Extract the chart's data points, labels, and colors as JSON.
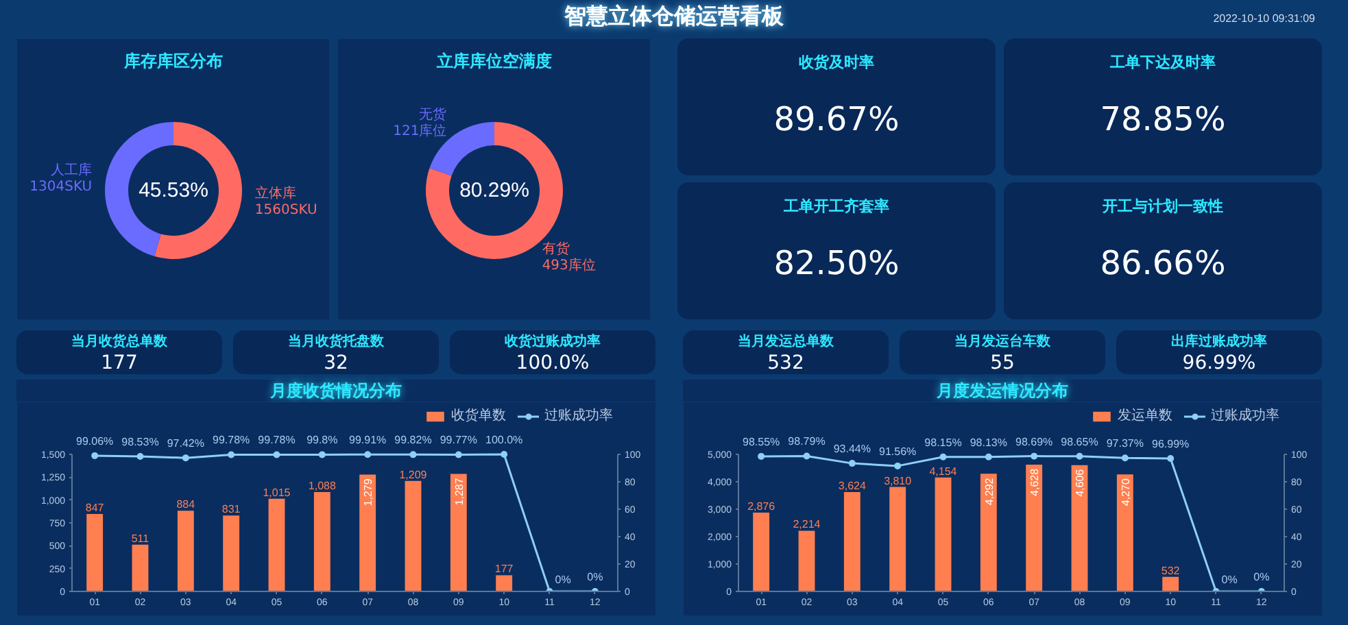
{
  "chart_data": [
    {
      "type": "other",
      "title": "智慧立体仓储运营看板",
      "annotations": [
        "2022-10-10 09:31:09"
      ]
    },
    {
      "type": "donut",
      "title": "库存库区分布",
      "categories": [
        "立体库",
        "人工库"
      ],
      "values": [
        1560,
        1304
      ],
      "colors": [
        "#ff6b63",
        "#6a6cff"
      ],
      "value_labels": [
        "1560SKU",
        "1304SKU"
      ],
      "annotations": [
        "45.53%"
      ]
    },
    {
      "type": "donut",
      "title": "立库库位空满度",
      "categories": [
        "有货",
        "无货"
      ],
      "values": [
        493,
        121
      ],
      "colors": [
        "#ff6b63",
        "#6a6cff"
      ],
      "value_labels": [
        "493库位",
        "121库位"
      ],
      "annotations": [
        "80.29%"
      ]
    },
    {
      "type": "other",
      "title": "收货及时率",
      "annotations": [
        "89.67%"
      ]
    },
    {
      "type": "other",
      "title": "工单下达及时率",
      "annotations": [
        "78.85%"
      ]
    },
    {
      "type": "other",
      "title": "工单开工齐套率",
      "annotations": [
        "82.50%"
      ]
    },
    {
      "type": "other",
      "title": "开工与计划一致性",
      "annotations": [
        "86.66%"
      ]
    },
    {
      "type": "other",
      "title": "当月收货总单数",
      "annotations": [
        "177"
      ]
    },
    {
      "type": "other",
      "title": "当月收货托盘数",
      "annotations": [
        "32"
      ]
    },
    {
      "type": "other",
      "title": "收货过账成功率",
      "annotations": [
        "100.0%"
      ]
    },
    {
      "type": "bar",
      "title": "月度收货情况分布",
      "categories": [
        "01",
        "02",
        "03",
        "04",
        "05",
        "06",
        "07",
        "08",
        "09",
        "10",
        "11",
        "12"
      ],
      "series": [
        {
          "name": "收货单数",
          "type": "bar",
          "color": "#ff7f50",
          "values": [
            847,
            511,
            884,
            831,
            1015,
            1088,
            1279,
            1209,
            1287,
            177,
            null,
            null
          ],
          "value_labels": [
            "847",
            "511",
            "884",
            "831",
            "1,015",
            "1,088",
            "1,279",
            "1,209",
            "1,287",
            "177",
            null,
            null
          ]
        },
        {
          "name": "过账成功率",
          "type": "line",
          "axis": "y2",
          "color": "#8fd0f5",
          "marker": "circle",
          "values": [
            99.06,
            98.53,
            97.42,
            99.78,
            99.78,
            99.8,
            99.91,
            99.82,
            99.77,
            100.0,
            0,
            0
          ],
          "value_labels": [
            "99.06%",
            "98.53%",
            "97.42%",
            "99.78%",
            "99.78%",
            "99.8%",
            "99.91%",
            "99.82%",
            "99.77%",
            "100.0%",
            "0%",
            "0%"
          ]
        }
      ],
      "ylim": [
        0,
        1500
      ],
      "yticks": [
        0,
        250,
        500,
        750,
        {
          "value": 1000,
          "label": "1,000"
        },
        {
          "value": 1250,
          "label": "1,250"
        },
        {
          "value": 1500,
          "label": "1,500"
        }
      ],
      "y2lim": [
        0,
        100
      ],
      "y2ticks": [
        0,
        20,
        40,
        60,
        80,
        100
      ],
      "legend": "top right",
      "grid": false
    },
    {
      "type": "other",
      "title": "当月发运总单数",
      "annotations": [
        "532"
      ]
    },
    {
      "type": "other",
      "title": "当月发运台车数",
      "annotations": [
        "55"
      ]
    },
    {
      "type": "other",
      "title": "出库过账成功率",
      "annotations": [
        "96.99%"
      ]
    },
    {
      "type": "bar",
      "title": "月度发运情况分布",
      "categories": [
        "01",
        "02",
        "03",
        "04",
        "05",
        "06",
        "07",
        "08",
        "09",
        "10",
        "11",
        "12"
      ],
      "series": [
        {
          "name": "发运单数",
          "type": "bar",
          "color": "#ff7f50",
          "values": [
            2876,
            2214,
            3624,
            3810,
            4154,
            4292,
            4628,
            4606,
            4270,
            532,
            null,
            null
          ],
          "value_labels": [
            "2,876",
            "2,214",
            "3,624",
            "3,810",
            "4,154",
            "4,292",
            "4,628",
            "4,606",
            "4,270",
            "532",
            null,
            null
          ]
        },
        {
          "name": "过账成功率",
          "type": "line",
          "axis": "y2",
          "color": "#8fd0f5",
          "marker": "circle",
          "values": [
            98.55,
            98.79,
            93.44,
            91.56,
            98.15,
            98.13,
            98.69,
            98.65,
            97.37,
            96.99,
            0,
            0
          ],
          "value_labels": [
            "98.55%",
            "98.79%",
            "93.44%",
            "91.56%",
            "98.15%",
            "98.13%",
            "98.69%",
            "98.65%",
            "97.37%",
            "96.99%",
            "0%",
            "0%"
          ]
        }
      ],
      "ylim": [
        0,
        5000
      ],
      "yticks": [
        0,
        {
          "value": 1000,
          "label": "1,000"
        },
        {
          "value": 2000,
          "label": "2,000"
        },
        {
          "value": 3000,
          "label": "3,000"
        },
        {
          "value": 4000,
          "label": "4,000"
        },
        {
          "value": 5000,
          "label": "5,000"
        }
      ],
      "y2lim": [
        0,
        100
      ],
      "y2ticks": [
        0,
        20,
        40,
        60,
        80,
        100
      ],
      "legend": "top right",
      "grid": false
    }
  ]
}
